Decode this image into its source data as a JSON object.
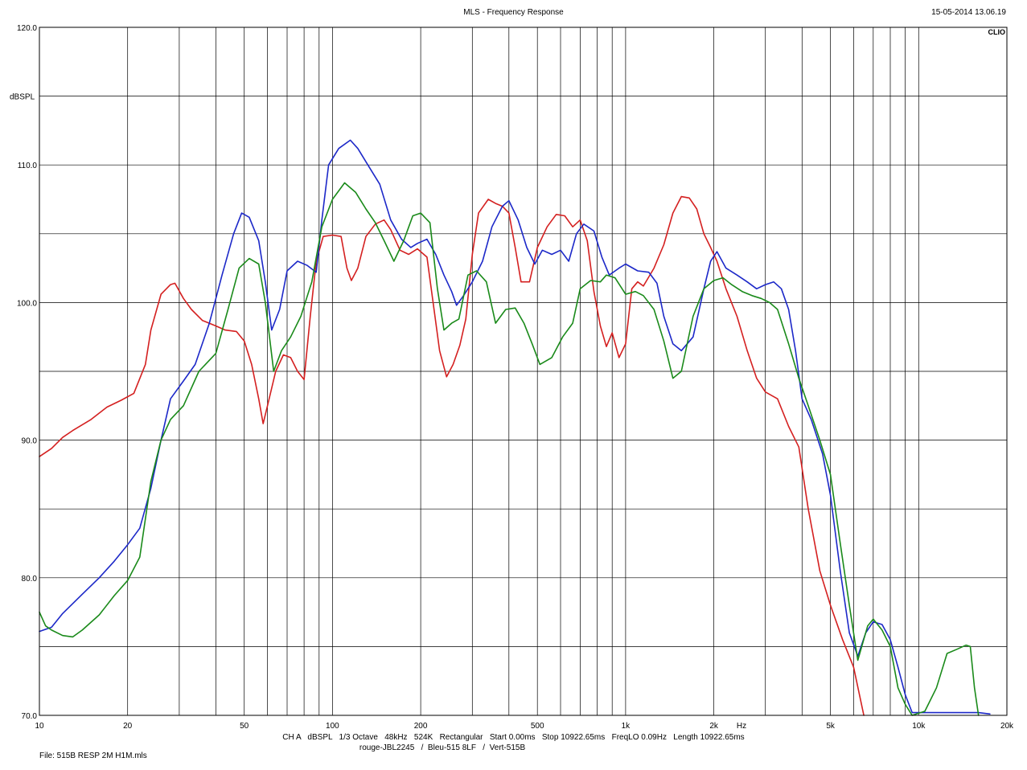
{
  "header": {
    "title": "MLS - Frequency Response",
    "datetime": "15-05-2014 13.06.19",
    "brand": "CLIO"
  },
  "footer": {
    "settings": "CH A   dBSPL   1/3 Octave   48kHz   524K   Rectangular   Start 0.00ms   Stop 10922.65ms   FreqLO 0.09Hz   Length 10922.65ms",
    "legend": "rouge-JBL2245   /  Bleu-515 8LF   /  Vert-515B",
    "file": "File: 515B RESP 2M H1M.mls"
  },
  "chart_data": {
    "type": "line",
    "title": "MLS - Frequency Response",
    "ylabel": "dBSPL",
    "xlabel": "Hz",
    "x_scale": "log",
    "xlim": [
      10,
      20000
    ],
    "ylim": [
      70,
      120
    ],
    "grid": true,
    "x_ticks": [
      {
        "value": 10,
        "label": "10"
      },
      {
        "value": 20,
        "label": "20"
      },
      {
        "value": 50,
        "label": "50"
      },
      {
        "value": 100,
        "label": "100"
      },
      {
        "value": 200,
        "label": "200"
      },
      {
        "value": 500,
        "label": "500"
      },
      {
        "value": 1000,
        "label": "1k"
      },
      {
        "value": 2000,
        "label": "2k"
      },
      {
        "value": 5000,
        "label": "5k"
      },
      {
        "value": 10000,
        "label": "10k"
      },
      {
        "value": 20000,
        "label": "20k"
      }
    ],
    "y_ticks": [
      {
        "value": 120,
        "label": "120.0"
      },
      {
        "value": 110,
        "label": "110.0"
      },
      {
        "value": 100,
        "label": "100.0"
      },
      {
        "value": 90,
        "label": "90.0"
      },
      {
        "value": 80,
        "label": "80.0"
      },
      {
        "value": 70,
        "label": "70.0"
      }
    ],
    "series": [
      {
        "name": "rouge-JBL2245",
        "color": "#d42020",
        "points": [
          [
            10,
            88.8
          ],
          [
            11,
            89.4
          ],
          [
            12,
            90.2
          ],
          [
            13,
            90.7
          ],
          [
            15,
            91.5
          ],
          [
            17,
            92.4
          ],
          [
            19,
            92.9
          ],
          [
            21,
            93.4
          ],
          [
            23,
            95.5
          ],
          [
            24,
            98.0
          ],
          [
            26,
            100.6
          ],
          [
            28,
            101.3
          ],
          [
            29,
            101.4
          ],
          [
            31,
            100.3
          ],
          [
            33,
            99.5
          ],
          [
            36,
            98.7
          ],
          [
            40,
            98.3
          ],
          [
            43,
            98.0
          ],
          [
            47,
            97.9
          ],
          [
            50,
            97.2
          ],
          [
            53,
            95.5
          ],
          [
            56,
            93.0
          ],
          [
            58,
            91.2
          ],
          [
            60,
            92.5
          ],
          [
            64,
            95.0
          ],
          [
            68,
            96.2
          ],
          [
            72,
            96.0
          ],
          [
            76,
            95.0
          ],
          [
            80,
            94.4
          ],
          [
            84,
            99.0
          ],
          [
            88,
            103.0
          ],
          [
            93,
            104.8
          ],
          [
            100,
            104.9
          ],
          [
            107,
            104.8
          ],
          [
            112,
            102.5
          ],
          [
            116,
            101.6
          ],
          [
            122,
            102.5
          ],
          [
            130,
            104.8
          ],
          [
            140,
            105.7
          ],
          [
            150,
            106.0
          ],
          [
            158,
            105.3
          ],
          [
            170,
            103.8
          ],
          [
            182,
            103.5
          ],
          [
            195,
            103.9
          ],
          [
            210,
            103.3
          ],
          [
            222,
            99.5
          ],
          [
            232,
            96.5
          ],
          [
            245,
            94.6
          ],
          [
            258,
            95.5
          ],
          [
            272,
            96.9
          ],
          [
            285,
            98.8
          ],
          [
            300,
            103.5
          ],
          [
            315,
            106.5
          ],
          [
            340,
            107.5
          ],
          [
            360,
            107.2
          ],
          [
            380,
            107.0
          ],
          [
            400,
            106.5
          ],
          [
            420,
            104.0
          ],
          [
            440,
            101.5
          ],
          [
            470,
            101.5
          ],
          [
            500,
            104.0
          ],
          [
            540,
            105.5
          ],
          [
            580,
            106.4
          ],
          [
            620,
            106.3
          ],
          [
            660,
            105.5
          ],
          [
            700,
            106.0
          ],
          [
            740,
            104.5
          ],
          [
            780,
            100.8
          ],
          [
            820,
            98.3
          ],
          [
            860,
            96.8
          ],
          [
            900,
            97.8
          ],
          [
            950,
            96.0
          ],
          [
            1000,
            97.0
          ],
          [
            1050,
            101.0
          ],
          [
            1100,
            101.5
          ],
          [
            1150,
            101.2
          ],
          [
            1250,
            102.5
          ],
          [
            1350,
            104.2
          ],
          [
            1450,
            106.5
          ],
          [
            1550,
            107.7
          ],
          [
            1650,
            107.6
          ],
          [
            1750,
            106.8
          ],
          [
            1850,
            105.0
          ],
          [
            1950,
            104.0
          ],
          [
            2050,
            103.0
          ],
          [
            2200,
            101.0
          ],
          [
            2400,
            99.0
          ],
          [
            2600,
            96.5
          ],
          [
            2800,
            94.5
          ],
          [
            3000,
            93.5
          ],
          [
            3300,
            93.0
          ],
          [
            3600,
            91.0
          ],
          [
            3900,
            89.5
          ],
          [
            4200,
            85.0
          ],
          [
            4600,
            80.5
          ],
          [
            5000,
            78.0
          ],
          [
            5500,
            75.5
          ],
          [
            6000,
            73.5
          ],
          [
            6500,
            70.0
          ]
        ]
      },
      {
        "name": "Bleu-515 8LF",
        "color": "#1c28c8",
        "points": [
          [
            10,
            76.1
          ],
          [
            11,
            76.4
          ],
          [
            12,
            77.4
          ],
          [
            14,
            78.8
          ],
          [
            16,
            80.0
          ],
          [
            18,
            81.2
          ],
          [
            20,
            82.4
          ],
          [
            22,
            83.6
          ],
          [
            24,
            86.5
          ],
          [
            26,
            90.0
          ],
          [
            28,
            93.0
          ],
          [
            31,
            94.3
          ],
          [
            34,
            95.5
          ],
          [
            38,
            98.5
          ],
          [
            42,
            102.0
          ],
          [
            46,
            105.0
          ],
          [
            49,
            106.5
          ],
          [
            52,
            106.2
          ],
          [
            56,
            104.5
          ],
          [
            59,
            101.5
          ],
          [
            62,
            98.0
          ],
          [
            66,
            99.5
          ],
          [
            70,
            102.3
          ],
          [
            76,
            103.0
          ],
          [
            82,
            102.7
          ],
          [
            88,
            102.2
          ],
          [
            92,
            106.0
          ],
          [
            97,
            110.0
          ],
          [
            105,
            111.2
          ],
          [
            115,
            111.8
          ],
          [
            122,
            111.2
          ],
          [
            132,
            110.0
          ],
          [
            145,
            108.6
          ],
          [
            158,
            106.0
          ],
          [
            172,
            104.6
          ],
          [
            185,
            104.0
          ],
          [
            195,
            104.3
          ],
          [
            210,
            104.6
          ],
          [
            225,
            103.5
          ],
          [
            240,
            102.0
          ],
          [
            255,
            100.8
          ],
          [
            265,
            99.8
          ],
          [
            280,
            100.5
          ],
          [
            300,
            101.5
          ],
          [
            325,
            103.0
          ],
          [
            350,
            105.5
          ],
          [
            380,
            107.0
          ],
          [
            400,
            107.4
          ],
          [
            430,
            106.0
          ],
          [
            460,
            104.0
          ],
          [
            490,
            102.8
          ],
          [
            520,
            103.8
          ],
          [
            560,
            103.5
          ],
          [
            600,
            103.8
          ],
          [
            640,
            103.0
          ],
          [
            680,
            105.0
          ],
          [
            720,
            105.7
          ],
          [
            780,
            105.2
          ],
          [
            830,
            103.3
          ],
          [
            880,
            102.0
          ],
          [
            950,
            102.5
          ],
          [
            1000,
            102.8
          ],
          [
            1100,
            102.3
          ],
          [
            1200,
            102.2
          ],
          [
            1280,
            101.4
          ],
          [
            1350,
            99.0
          ],
          [
            1450,
            97.0
          ],
          [
            1550,
            96.5
          ],
          [
            1700,
            97.5
          ],
          [
            1850,
            101.0
          ],
          [
            1950,
            103.0
          ],
          [
            2050,
            103.7
          ],
          [
            2200,
            102.5
          ],
          [
            2400,
            102.0
          ],
          [
            2600,
            101.5
          ],
          [
            2800,
            101.0
          ],
          [
            3000,
            101.3
          ],
          [
            3200,
            101.5
          ],
          [
            3400,
            101.0
          ],
          [
            3600,
            99.5
          ],
          [
            3800,
            96.5
          ],
          [
            4000,
            93.0
          ],
          [
            4300,
            91.5
          ],
          [
            4700,
            89.0
          ],
          [
            5000,
            86.0
          ],
          [
            5400,
            80.5
          ],
          [
            5800,
            76.0
          ],
          [
            6200,
            74.3
          ],
          [
            6600,
            76.0
          ],
          [
            7000,
            76.8
          ],
          [
            7500,
            76.6
          ],
          [
            8000,
            75.5
          ],
          [
            8500,
            73.5
          ],
          [
            9000,
            71.5
          ],
          [
            9500,
            70.2
          ],
          [
            16000,
            70.2
          ],
          [
            17500,
            70.1
          ]
        ]
      },
      {
        "name": "Vert-515B",
        "color": "#1a8a1a",
        "points": [
          [
            10,
            77.5
          ],
          [
            10.5,
            76.5
          ],
          [
            11,
            76.2
          ],
          [
            12,
            75.8
          ],
          [
            13,
            75.7
          ],
          [
            14,
            76.2
          ],
          [
            16,
            77.3
          ],
          [
            18,
            78.7
          ],
          [
            20,
            79.8
          ],
          [
            22,
            81.5
          ],
          [
            24,
            87.0
          ],
          [
            26,
            90.0
          ],
          [
            28,
            91.5
          ],
          [
            31,
            92.5
          ],
          [
            35,
            95.0
          ],
          [
            40,
            96.3
          ],
          [
            44,
            99.5
          ],
          [
            48,
            102.5
          ],
          [
            52,
            103.2
          ],
          [
            56,
            102.8
          ],
          [
            59,
            100.0
          ],
          [
            63,
            95.0
          ],
          [
            67,
            96.5
          ],
          [
            72,
            97.5
          ],
          [
            78,
            99.0
          ],
          [
            85,
            101.5
          ],
          [
            92,
            105.5
          ],
          [
            100,
            107.5
          ],
          [
            110,
            108.7
          ],
          [
            120,
            108.0
          ],
          [
            130,
            106.8
          ],
          [
            140,
            105.8
          ],
          [
            150,
            104.5
          ],
          [
            162,
            103.0
          ],
          [
            175,
            104.5
          ],
          [
            188,
            106.3
          ],
          [
            200,
            106.5
          ],
          [
            215,
            105.8
          ],
          [
            228,
            101.0
          ],
          [
            240,
            98.0
          ],
          [
            255,
            98.5
          ],
          [
            270,
            98.8
          ],
          [
            290,
            102.0
          ],
          [
            310,
            102.3
          ],
          [
            335,
            101.5
          ],
          [
            360,
            98.5
          ],
          [
            390,
            99.5
          ],
          [
            420,
            99.6
          ],
          [
            450,
            98.5
          ],
          [
            480,
            97.0
          ],
          [
            510,
            95.5
          ],
          [
            560,
            96.0
          ],
          [
            610,
            97.5
          ],
          [
            660,
            98.5
          ],
          [
            700,
            101.0
          ],
          [
            760,
            101.6
          ],
          [
            820,
            101.5
          ],
          [
            860,
            102.0
          ],
          [
            920,
            101.8
          ],
          [
            1000,
            100.6
          ],
          [
            1080,
            100.8
          ],
          [
            1150,
            100.5
          ],
          [
            1250,
            99.5
          ],
          [
            1350,
            97.2
          ],
          [
            1450,
            94.5
          ],
          [
            1550,
            95.0
          ],
          [
            1700,
            99.0
          ],
          [
            1850,
            101.0
          ],
          [
            2000,
            101.6
          ],
          [
            2150,
            101.8
          ],
          [
            2300,
            101.3
          ],
          [
            2500,
            100.8
          ],
          [
            2700,
            100.5
          ],
          [
            2900,
            100.3
          ],
          [
            3100,
            100.0
          ],
          [
            3300,
            99.5
          ],
          [
            3600,
            97.0
          ],
          [
            3900,
            94.5
          ],
          [
            4200,
            92.5
          ],
          [
            4600,
            90.0
          ],
          [
            5000,
            87.5
          ],
          [
            5400,
            82.5
          ],
          [
            5800,
            78.0
          ],
          [
            6200,
            74.0
          ],
          [
            6700,
            76.5
          ],
          [
            7000,
            77.0
          ],
          [
            7500,
            76.2
          ],
          [
            8000,
            75.0
          ],
          [
            8500,
            72.0
          ],
          [
            9000,
            70.8
          ],
          [
            9500,
            70.0
          ],
          [
            10500,
            70.3
          ],
          [
            11500,
            72.0
          ],
          [
            12500,
            74.5
          ],
          [
            13500,
            74.8
          ],
          [
            14500,
            75.1
          ],
          [
            15000,
            75.0
          ],
          [
            15500,
            72.0
          ],
          [
            16000,
            70.0
          ]
        ]
      }
    ]
  }
}
